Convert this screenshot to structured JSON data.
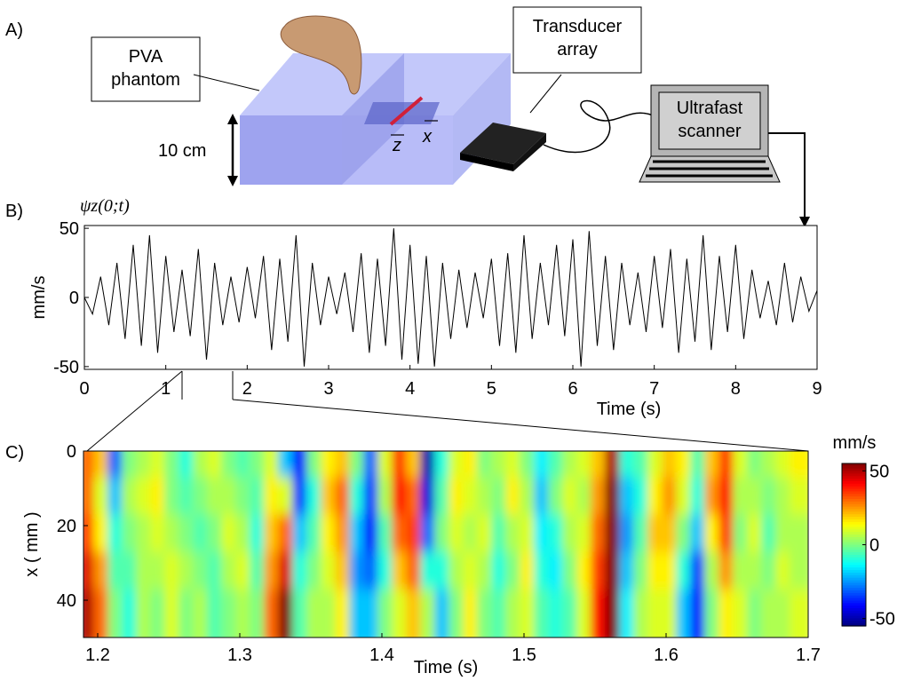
{
  "panel_labels": [
    "A)",
    "B)",
    "C)"
  ],
  "diagram": {
    "phantom": "PVA phantom",
    "transducer": "Transducer array",
    "scanner": "Ultrafast scanner",
    "depth": "10 cm",
    "axis_z": "z",
    "axis_x": "x"
  },
  "chart_data": [
    {
      "type": "line",
      "title": "ψz(0;t)",
      "ylabel": "mm/s",
      "xlabel": "Time (s)",
      "color": "#000000",
      "x": [
        0,
        0.1,
        0.2,
        0.3,
        0.4,
        0.5,
        0.6,
        0.7,
        0.8,
        0.9,
        1,
        1.1,
        1.2,
        1.3,
        1.4,
        1.5,
        1.6,
        1.7,
        1.8,
        1.9,
        2,
        2.1,
        2.2,
        2.3,
        2.4,
        2.5,
        2.6,
        2.7,
        2.8,
        2.9,
        3,
        3.1,
        3.2,
        3.3,
        3.4,
        3.5,
        3.6,
        3.7,
        3.8,
        3.9,
        4,
        4.1,
        4.2,
        4.3,
        4.4,
        4.5,
        4.6,
        4.7,
        4.8,
        4.9,
        5,
        5.1,
        5.2,
        5.3,
        5.4,
        5.5,
        5.6,
        5.7,
        5.8,
        5.9,
        6,
        6.1,
        6.2,
        6.3,
        6.4,
        6.5,
        6.6,
        6.7,
        6.8,
        6.9,
        7,
        7.1,
        7.2,
        7.3,
        7.4,
        7.5,
        7.6,
        7.7,
        7.8,
        7.9,
        8,
        8.1,
        8.2,
        8.3,
        8.4,
        8.5,
        8.6,
        8.7,
        8.8,
        8.9,
        9
      ],
      "values": [
        0,
        -12,
        15,
        -20,
        25,
        -30,
        38,
        -35,
        45,
        -40,
        30,
        -25,
        20,
        -28,
        35,
        -45,
        25,
        -20,
        15,
        -18,
        22,
        -15,
        30,
        -38,
        28,
        -32,
        45,
        -50,
        25,
        -20,
        15,
        -12,
        18,
        -25,
        32,
        -40,
        28,
        -35,
        50,
        -45,
        38,
        -48,
        30,
        -50,
        25,
        -30,
        20,
        -22,
        18,
        -15,
        28,
        -35,
        32,
        -40,
        45,
        -30,
        25,
        -20,
        38,
        -28,
        42,
        -50,
        48,
        -35,
        30,
        -38,
        25,
        -20,
        18,
        -25,
        30,
        -22,
        35,
        -40,
        28,
        -32,
        45,
        -38,
        30,
        -25,
        38,
        -30,
        20,
        -15,
        12,
        -20,
        25,
        -18,
        15,
        -10,
        5
      ],
      "xlim": [
        0,
        9
      ],
      "xticks": [
        0,
        1,
        2,
        3,
        4,
        5,
        6,
        7,
        8,
        9
      ],
      "ylim": [
        -52,
        52
      ],
      "yticks": [
        -50,
        0,
        50
      ]
    },
    {
      "type": "heatmap",
      "xlabel": "Time (s)",
      "ylabel": "x ( mm )",
      "colorbar_label": "mm/s",
      "colormap": "jet",
      "x": [
        1.195,
        1.205,
        1.215,
        1.225,
        1.235,
        1.245,
        1.255,
        1.265,
        1.275,
        1.285,
        1.295,
        1.305,
        1.315,
        1.325,
        1.335,
        1.345,
        1.355,
        1.365,
        1.375,
        1.385,
        1.395,
        1.405,
        1.415,
        1.425,
        1.435,
        1.445,
        1.455,
        1.465,
        1.475,
        1.485,
        1.495,
        1.505,
        1.515,
        1.525,
        1.535,
        1.545,
        1.555,
        1.565,
        1.575,
        1.585,
        1.595,
        1.605,
        1.615,
        1.625,
        1.635,
        1.645,
        1.655,
        1.665,
        1.675,
        1.685,
        1.695
      ],
      "y": [
        5,
        15,
        25,
        35,
        45
      ],
      "values": [
        [
          30,
          20,
          -30,
          0,
          5,
          10,
          0,
          -10,
          5,
          10,
          0,
          -5,
          0,
          10,
          -20,
          -40,
          0,
          15,
          20,
          0,
          -30,
          10,
          35,
          20,
          -50,
          -10,
          10,
          15,
          0,
          5,
          10,
          0,
          -15,
          -5,
          5,
          10,
          20,
          50,
          -10,
          -5,
          10,
          20,
          15,
          -5,
          20,
          35,
          10,
          0,
          5,
          10,
          15
        ],
        [
          30,
          10,
          -20,
          5,
          10,
          15,
          0,
          -5,
          0,
          5,
          5,
          0,
          -5,
          15,
          10,
          -35,
          -10,
          20,
          30,
          -10,
          -35,
          5,
          40,
          30,
          -45,
          -5,
          15,
          10,
          5,
          0,
          15,
          5,
          -20,
          0,
          10,
          5,
          25,
          55,
          -20,
          -10,
          15,
          25,
          10,
          -10,
          25,
          40,
          5,
          5,
          0,
          5,
          10
        ],
        [
          35,
          15,
          -10,
          0,
          5,
          10,
          5,
          0,
          -5,
          0,
          10,
          5,
          -10,
          20,
          30,
          -20,
          -5,
          15,
          25,
          -20,
          -40,
          -5,
          30,
          35,
          -30,
          0,
          10,
          5,
          10,
          -5,
          5,
          10,
          -15,
          -10,
          5,
          10,
          30,
          55,
          -25,
          -5,
          20,
          20,
          0,
          -20,
          15,
          35,
          0,
          10,
          -5,
          5,
          5
        ],
        [
          45,
          25,
          -5,
          -5,
          5,
          5,
          10,
          5,
          0,
          -5,
          5,
          10,
          -5,
          25,
          45,
          -10,
          0,
          10,
          20,
          -25,
          -30,
          -10,
          20,
          30,
          -10,
          -10,
          5,
          10,
          5,
          -10,
          0,
          15,
          -10,
          -15,
          0,
          15,
          35,
          55,
          -20,
          0,
          15,
          15,
          -10,
          -35,
          5,
          25,
          5,
          5,
          0,
          10,
          5
        ],
        [
          50,
          30,
          0,
          -10,
          5,
          0,
          10,
          0,
          5,
          -5,
          0,
          5,
          0,
          30,
          55,
          -5,
          5,
          5,
          15,
          -20,
          -20,
          0,
          10,
          20,
          5,
          -20,
          0,
          15,
          0,
          -5,
          5,
          10,
          -5,
          -10,
          -5,
          10,
          40,
          55,
          -15,
          5,
          10,
          10,
          -20,
          -40,
          0,
          15,
          10,
          0,
          5,
          5,
          10
        ]
      ],
      "xlim": [
        1.19,
        1.7
      ],
      "xticks": [
        1.2,
        1.3,
        1.4,
        1.5,
        1.6,
        1.7
      ],
      "ylim": [
        50,
        0
      ],
      "yticks": [
        0,
        20,
        40
      ],
      "clim": [
        -55,
        55
      ],
      "cticks": [
        -50,
        0,
        50
      ]
    }
  ]
}
